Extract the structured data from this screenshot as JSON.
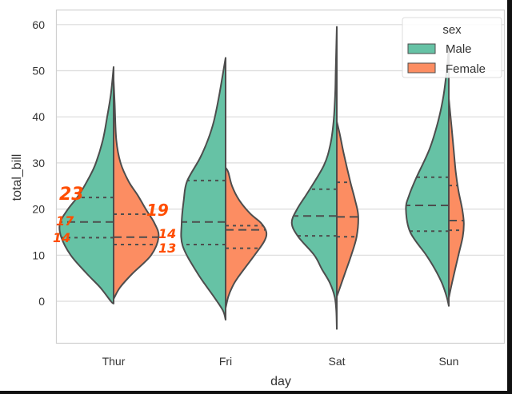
{
  "chart_data": {
    "type": "violin",
    "split": true,
    "title": "",
    "xlabel": "day",
    "ylabel": "total_bill",
    "categories": [
      "Thur",
      "Fri",
      "Sat",
      "Sun"
    ],
    "ylim": [
      -9,
      63
    ],
    "yticks": [
      0,
      10,
      20,
      30,
      40,
      50,
      60
    ],
    "grid": true,
    "legend": {
      "title": "sex",
      "placement": "top-right",
      "entries": [
        "Male",
        "Female"
      ]
    },
    "colors": {
      "Male": "#66c2a5",
      "Female": "#fc8d62",
      "edge": "#4d4d4d"
    },
    "series": [
      {
        "name": "Male",
        "violins": [
          {
            "category": "Thur",
            "quartiles": [
              13.8,
              17.2,
              22.5
            ],
            "density": [
              [
                -0.5,
                0
              ],
              [
                0,
                0.05
              ],
              [
                3,
                0.25
              ],
              [
                6,
                0.5
              ],
              [
                10,
                0.8
              ],
              [
                14,
                0.98
              ],
              [
                17,
                1.0
              ],
              [
                20,
                0.85
              ],
              [
                23,
                0.65
              ],
              [
                27,
                0.45
              ],
              [
                30,
                0.33
              ],
              [
                35,
                0.2
              ],
              [
                40,
                0.12
              ],
              [
                45,
                0.05
              ],
              [
                50.8,
                0
              ]
            ]
          },
          {
            "category": "Fri",
            "quartiles": [
              12.3,
              17.2,
              26.2
            ],
            "density": [
              [
                -4,
                0
              ],
              [
                -2,
                0.05
              ],
              [
                1,
                0.22
              ],
              [
                6,
                0.52
              ],
              [
                12,
                0.8
              ],
              [
                17,
                0.82
              ],
              [
                22,
                0.78
              ],
              [
                26,
                0.72
              ],
              [
                31,
                0.48
              ],
              [
                35,
                0.33
              ],
              [
                39,
                0.22
              ],
              [
                44,
                0.13
              ],
              [
                48,
                0.07
              ],
              [
                52.8,
                0
              ]
            ]
          },
          {
            "category": "Sat",
            "quartiles": [
              14.2,
              18.5,
              24.3
            ],
            "density": [
              [
                -6,
                0
              ],
              [
                -2,
                0.01
              ],
              [
                1,
                0.04
              ],
              [
                4,
                0.13
              ],
              [
                7,
                0.28
              ],
              [
                10,
                0.42
              ],
              [
                14,
                0.72
              ],
              [
                17,
                0.84
              ],
              [
                20,
                0.74
              ],
              [
                24,
                0.52
              ],
              [
                29.5,
                0.24
              ],
              [
                34,
                0.12
              ],
              [
                39,
                0.06
              ],
              [
                45,
                0.03
              ],
              [
                50,
                0.02
              ],
              [
                59.5,
                0
              ]
            ]
          },
          {
            "category": "Sun",
            "quartiles": [
              15.2,
              20.8,
              26.9
            ],
            "density": [
              [
                -1,
                0
              ],
              [
                1,
                0.04
              ],
              [
                4,
                0.13
              ],
              [
                7,
                0.26
              ],
              [
                10,
                0.42
              ],
              [
                15,
                0.72
              ],
              [
                20,
                0.8
              ],
              [
                23,
                0.74
              ],
              [
                26.7,
                0.61
              ],
              [
                33,
                0.36
              ],
              [
                39,
                0.2
              ],
              [
                44.5,
                0.1
              ],
              [
                50,
                0.04
              ],
              [
                55,
                0
              ]
            ]
          }
        ]
      },
      {
        "name": "Female",
        "violins": [
          {
            "category": "Thur",
            "quartiles": [
              12.3,
              13.9,
              18.9
            ],
            "density": [
              [
                0.5,
                0
              ],
              [
                3,
                0.12
              ],
              [
                6,
                0.35
              ],
              [
                10,
                0.7
              ],
              [
                14,
                0.84
              ],
              [
                17,
                0.76
              ],
              [
                20,
                0.6
              ],
              [
                23,
                0.45
              ],
              [
                26,
                0.28
              ],
              [
                30,
                0.13
              ],
              [
                35,
                0.05
              ],
              [
                43,
                0.02
              ],
              [
                48,
                0
              ]
            ]
          },
          {
            "category": "Fri",
            "quartiles": [
              11.5,
              15.5,
              16.4
            ],
            "density": [
              [
                -1.5,
                0
              ],
              [
                1,
                0.05
              ],
              [
                3,
                0.12
              ],
              [
                5,
                0.22
              ],
              [
                10,
                0.54
              ],
              [
                13,
                0.72
              ],
              [
                15,
                0.76
              ],
              [
                17,
                0.66
              ],
              [
                19,
                0.46
              ],
              [
                22,
                0.25
              ],
              [
                25,
                0.12
              ],
              [
                28,
                0.05
              ],
              [
                29,
                0
              ]
            ]
          },
          {
            "category": "Sat",
            "quartiles": [
              14.0,
              18.3,
              25.8
            ],
            "density": [
              [
                1,
                0
              ],
              [
                3,
                0.06
              ],
              [
                6,
                0.15
              ],
              [
                10,
                0.27
              ],
              [
                14,
                0.37
              ],
              [
                18.5,
                0.4
              ],
              [
                22,
                0.34
              ],
              [
                26,
                0.25
              ],
              [
                32,
                0.13
              ],
              [
                36,
                0.06
              ],
              [
                39,
                0
              ]
            ]
          },
          {
            "category": "Sun",
            "quartiles": [
              15.4,
              17.5,
              25.1
            ],
            "density": [
              [
                0.7,
                0
              ],
              [
                4,
                0.06
              ],
              [
                10,
                0.18
              ],
              [
                14,
                0.26
              ],
              [
                17,
                0.28
              ],
              [
                20,
                0.25
              ],
              [
                24,
                0.18
              ],
              [
                28,
                0.13
              ],
              [
                33,
                0.09
              ],
              [
                38,
                0.05
              ],
              [
                44,
                0
              ]
            ]
          }
        ]
      }
    ],
    "annotations": [
      "23",
      "17",
      "14",
      "19",
      "14",
      "13"
    ]
  }
}
